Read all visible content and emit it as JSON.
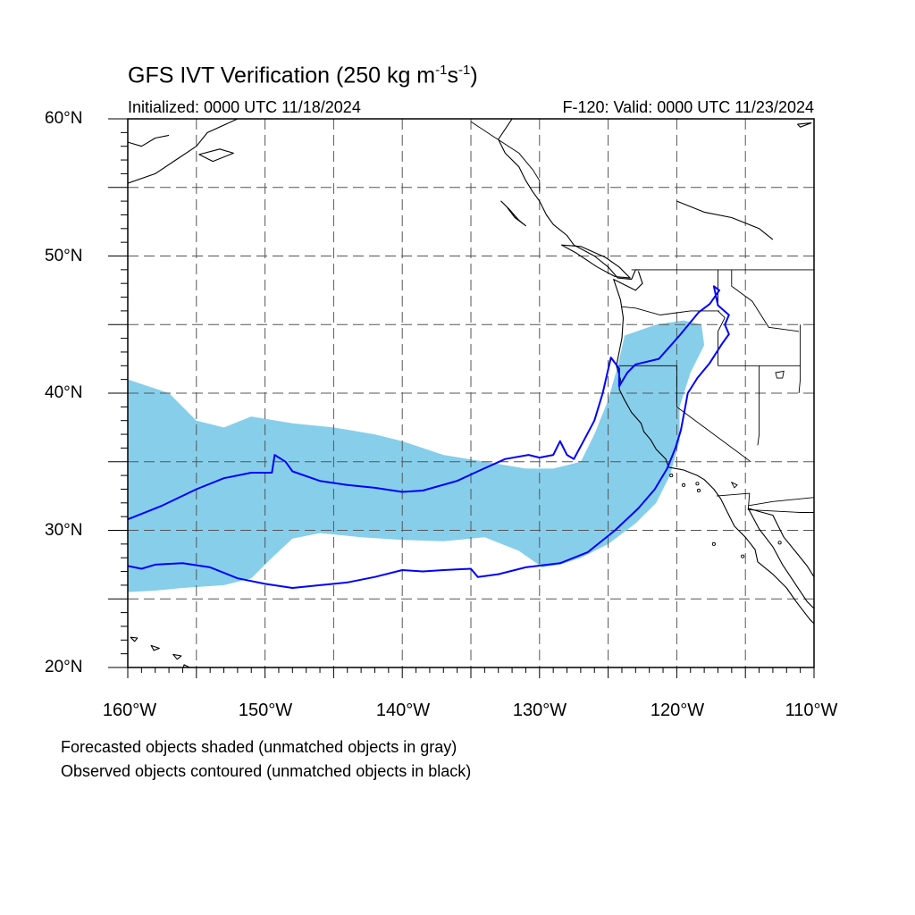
{
  "header": {
    "title_main": "GFS IVT Verification (250 kg m",
    "title_exp1": "-1",
    "title_mid": "s",
    "title_exp2": "-1",
    "title_end": ")",
    "initialized": "Initialized: 0000 UTC 11/18/2024",
    "valid": "F-120: Valid: 0000 UTC 11/23/2024"
  },
  "axes": {
    "lat_labels": [
      "60°N",
      "50°N",
      "40°N",
      "30°N",
      "20°N"
    ],
    "lon_labels": [
      "160°W",
      "150°W",
      "140°W",
      "130°W",
      "120°W",
      "110°W"
    ],
    "lat_range": [
      20,
      60
    ],
    "lon_range": [
      -160,
      -110
    ],
    "grid": "dashed, every 5 degrees"
  },
  "legend": {
    "line1": "Forecasted objects shaded (unmatched objects in gray)",
    "line2": "Observed objects contoured (unmatched objects in black)"
  },
  "colors": {
    "forecast_fill": "#87ceeb",
    "observed_contour": "#0000ff",
    "coastline": "#000000",
    "grid": "#555555"
  },
  "forecast_object": {
    "lonlat": [
      [
        -160,
        41
      ],
      [
        -157,
        40
      ],
      [
        -155,
        38
      ],
      [
        -153,
        37.5
      ],
      [
        -151,
        38.3
      ],
      [
        -148,
        37.8
      ],
      [
        -145,
        37.5
      ],
      [
        -142,
        37
      ],
      [
        -140,
        36.5
      ],
      [
        -137,
        35.5
      ],
      [
        -134,
        35
      ],
      [
        -131,
        34.5
      ],
      [
        -129,
        34.5
      ],
      [
        -127,
        35
      ],
      [
        -126,
        37
      ],
      [
        -125,
        39.5
      ],
      [
        -124.3,
        42
      ],
      [
        -123.8,
        44.2
      ],
      [
        -121.5,
        45
      ],
      [
        -119.5,
        45.3
      ],
      [
        -118.2,
        45
      ],
      [
        -118,
        43.5
      ],
      [
        -119,
        41.5
      ],
      [
        -119.8,
        39
      ],
      [
        -119.8,
        36.5
      ],
      [
        -120.5,
        34
      ],
      [
        -121.5,
        32
      ],
      [
        -123,
        30.5
      ],
      [
        -125,
        29
      ],
      [
        -127,
        28
      ],
      [
        -128.5,
        27.5
      ],
      [
        -129.8,
        27.3
      ],
      [
        -131.5,
        28.5
      ],
      [
        -134,
        29.5
      ],
      [
        -137,
        29.2
      ],
      [
        -140,
        29.3
      ],
      [
        -143,
        29.5
      ],
      [
        -146,
        29.8
      ],
      [
        -148,
        29.4
      ],
      [
        -149.5,
        28
      ],
      [
        -151,
        26.5
      ],
      [
        -153,
        26
      ],
      [
        -156,
        25.8
      ],
      [
        -158,
        25.6
      ],
      [
        -160,
        25.5
      ]
    ]
  },
  "observed_object": {
    "lonlat": [
      [
        -160,
        30.8
      ],
      [
        -157.5,
        31.8
      ],
      [
        -155,
        33
      ],
      [
        -153,
        33.8
      ],
      [
        -151,
        34.2
      ],
      [
        -149.5,
        34.2
      ],
      [
        -149.3,
        35.5
      ],
      [
        -148.5,
        35
      ],
      [
        -148,
        34.3
      ],
      [
        -146,
        33.6
      ],
      [
        -144,
        33.3
      ],
      [
        -142,
        33.1
      ],
      [
        -140,
        32.8
      ],
      [
        -138.5,
        32.9
      ],
      [
        -136,
        33.6
      ],
      [
        -134.5,
        34.3
      ],
      [
        -132.5,
        35.2
      ],
      [
        -130.8,
        35.5
      ],
      [
        -130,
        35.3
      ],
      [
        -129,
        35.5
      ],
      [
        -128.5,
        36.5
      ],
      [
        -128,
        35.5
      ],
      [
        -127.5,
        35.2
      ],
      [
        -126.8,
        36.5
      ],
      [
        -126,
        38
      ],
      [
        -125.4,
        40
      ],
      [
        -124.8,
        42.6
      ],
      [
        -124.2,
        41.8
      ],
      [
        -124.2,
        40.5
      ],
      [
        -123.6,
        41.5
      ],
      [
        -123,
        42.1
      ],
      [
        -121.3,
        42.5
      ],
      [
        -119.8,
        44.2
      ],
      [
        -118.4,
        45.9
      ],
      [
        -117.6,
        46.5
      ],
      [
        -116.9,
        47.5
      ],
      [
        -117.3,
        47.8
      ],
      [
        -117,
        46.4
      ],
      [
        -116.2,
        45.7
      ],
      [
        -116.5,
        45
      ],
      [
        -116.2,
        44.3
      ],
      [
        -116.7,
        43.6
      ],
      [
        -117.6,
        42.2
      ],
      [
        -118.5,
        41.1
      ],
      [
        -119.2,
        40
      ],
      [
        -119.4,
        38.9
      ],
      [
        -119.7,
        37.3
      ],
      [
        -120.1,
        36
      ],
      [
        -120.7,
        34.5
      ],
      [
        -121.6,
        33
      ],
      [
        -122.8,
        31.6
      ],
      [
        -124.5,
        30
      ],
      [
        -126.5,
        28.4
      ],
      [
        -128.5,
        27.6
      ],
      [
        -131,
        27.3
      ],
      [
        -133,
        26.8
      ],
      [
        -134.5,
        26.6
      ],
      [
        -135,
        27.2
      ],
      [
        -137,
        27.1
      ],
      [
        -138.5,
        27
      ],
      [
        -140,
        27.1
      ],
      [
        -142,
        26.6
      ],
      [
        -144,
        26.2
      ],
      [
        -146,
        26
      ],
      [
        -148,
        25.8
      ],
      [
        -150,
        26.1
      ],
      [
        -152,
        26.5
      ],
      [
        -154,
        27.3
      ],
      [
        -156,
        27.6
      ],
      [
        -158,
        27.5
      ],
      [
        -159,
        27.2
      ],
      [
        -160,
        27.4
      ]
    ]
  },
  "coastlines": [
    {
      "name": "alaska-panhandle",
      "lonlat": [
        [
          -132,
          60
        ],
        [
          -133,
          58.5
        ],
        [
          -132.5,
          57.5
        ],
        [
          -131.5,
          56.5
        ],
        [
          -131,
          55.5
        ],
        [
          -130.5,
          54.7
        ],
        [
          -130,
          54
        ],
        [
          -129.5,
          53
        ],
        [
          -129,
          52.3
        ],
        [
          -128,
          51.5
        ],
        [
          -127.5,
          50.8
        ],
        [
          -126,
          50
        ],
        [
          -125,
          49.2
        ],
        [
          -124.3,
          48.4
        ],
        [
          -123.3,
          48.3
        ],
        [
          -123,
          49
        ],
        [
          -122.7,
          49
        ]
      ]
    },
    {
      "name": "haida-gwaii",
      "lonlat": [
        [
          -132.8,
          54
        ],
        [
          -132.2,
          53.4
        ],
        [
          -131.5,
          52.6
        ],
        [
          -131,
          52.2
        ],
        [
          -131.8,
          52.8
        ],
        [
          -132.4,
          53.6
        ],
        [
          -132.8,
          54
        ]
      ]
    },
    {
      "name": "vancouver-island",
      "lonlat": [
        [
          -128.4,
          50.8
        ],
        [
          -127.3,
          50.2
        ],
        [
          -125.8,
          49.2
        ],
        [
          -124.5,
          48.5
        ],
        [
          -123.4,
          48.4
        ],
        [
          -124.2,
          49.2
        ],
        [
          -125.2,
          49.9
        ],
        [
          -127,
          50.7
        ],
        [
          -128.4,
          50.8
        ]
      ]
    },
    {
      "name": "west-coast-us-mexico",
      "lonlat": [
        [
          -122.8,
          48.9
        ],
        [
          -122.5,
          48
        ],
        [
          -123,
          47.5
        ],
        [
          -124.6,
          48.3
        ],
        [
          -124.1,
          46.8
        ],
        [
          -123.9,
          45.5
        ],
        [
          -124,
          44
        ],
        [
          -124.2,
          43
        ],
        [
          -124.4,
          42
        ],
        [
          -124.1,
          41
        ],
        [
          -124.2,
          40.3
        ],
        [
          -123.8,
          39.5
        ],
        [
          -123.3,
          38.6
        ],
        [
          -122.6,
          37.8
        ],
        [
          -122.4,
          37.2
        ],
        [
          -121.9,
          36.6
        ],
        [
          -121.5,
          35.9
        ],
        [
          -120.8,
          35.2
        ],
        [
          -120.6,
          34.6
        ],
        [
          -119.5,
          34.4
        ],
        [
          -118.5,
          34
        ],
        [
          -118,
          33.7
        ],
        [
          -117.3,
          33
        ],
        [
          -116.8,
          32.3
        ],
        [
          -116.3,
          31.3
        ],
        [
          -115.8,
          30.3
        ],
        [
          -115,
          29.5
        ],
        [
          -114.3,
          28.6
        ],
        [
          -114.1,
          27.7
        ],
        [
          -113,
          26.8
        ],
        [
          -112,
          25.8
        ],
        [
          -111.3,
          24.8
        ],
        [
          -110.3,
          23.5
        ],
        [
          -110,
          23.2
        ]
      ]
    },
    {
      "name": "gulf-of-california",
      "lonlat": [
        [
          -110,
          24.3
        ],
        [
          -110.5,
          24.8
        ],
        [
          -111.3,
          26
        ],
        [
          -112.3,
          27.5
        ],
        [
          -113,
          28.8
        ],
        [
          -114,
          30.1
        ],
        [
          -114.8,
          31.6
        ],
        [
          -114.1,
          31.4
        ],
        [
          -113,
          31.1
        ],
        [
          -112.2,
          29.5
        ],
        [
          -111.3,
          28.4
        ],
        [
          -110.5,
          27.4
        ],
        [
          -110,
          26.6
        ]
      ]
    },
    {
      "name": "hawaii-big-island",
      "lonlat": [
        [
          -155.9,
          20.2
        ],
        [
          -155.1,
          19.8
        ],
        [
          -155.6,
          19.3
        ],
        [
          -156,
          19.7
        ],
        [
          -155.9,
          20.2
        ]
      ]
    },
    {
      "name": "hawaii-maui",
      "lonlat": [
        [
          -156.7,
          20.95
        ],
        [
          -156.1,
          20.85
        ],
        [
          -156.4,
          20.6
        ],
        [
          -156.7,
          20.95
        ]
      ]
    },
    {
      "name": "hawaii-oahu",
      "lonlat": [
        [
          -158.3,
          21.6
        ],
        [
          -157.7,
          21.4
        ],
        [
          -158.1,
          21.25
        ],
        [
          -158.3,
          21.6
        ]
      ]
    },
    {
      "name": "hawaii-kauai",
      "lonlat": [
        [
          -159.8,
          22.2
        ],
        [
          -159.3,
          22.15
        ],
        [
          -159.5,
          21.9
        ],
        [
          -159.8,
          22.2
        ]
      ]
    },
    {
      "name": "alaska-gulf-coast",
      "lonlat": [
        [
          -160,
          55.3
        ],
        [
          -158,
          56
        ],
        [
          -156.5,
          57
        ],
        [
          -155,
          58
        ],
        [
          -154.2,
          59
        ],
        [
          -152,
          60
        ]
      ]
    },
    {
      "name": "kodiak",
      "lonlat": [
        [
          -154.8,
          57.4
        ],
        [
          -153.3,
          57.8
        ],
        [
          -152.3,
          57.5
        ],
        [
          -153.8,
          56.9
        ],
        [
          -154.8,
          57.4
        ]
      ]
    },
    {
      "name": "alaska-peninsula-islands",
      "lonlat": [
        [
          -160,
          58.3
        ],
        [
          -159,
          58
        ],
        [
          -158,
          58.6
        ],
        [
          -157,
          58.8
        ]
      ]
    },
    {
      "name": "canada-interior-line",
      "lonlat": [
        [
          -120,
          54
        ],
        [
          -118,
          53.2
        ],
        [
          -116,
          52.8
        ],
        [
          -114,
          52
        ],
        [
          -113,
          51.2
        ]
      ]
    },
    {
      "name": "hudson-fragment",
      "lonlat": [
        [
          -110.2,
          59.7
        ],
        [
          -111,
          59.4
        ],
        [
          -111.2,
          59.6
        ],
        [
          -110.2,
          59.7
        ]
      ]
    }
  ],
  "borders": [
    {
      "name": "us-canada",
      "lonlat": [
        [
          -123.3,
          49
        ],
        [
          -110,
          49
        ]
      ]
    },
    {
      "name": "alaska-canada",
      "lonlat": [
        [
          -135,
          59.8
        ],
        [
          -133.5,
          58.8
        ],
        [
          -131.5,
          57.5
        ],
        [
          -130.5,
          56.3
        ],
        [
          -130,
          55.5
        ],
        [
          -130,
          54.7
        ]
      ]
    },
    {
      "name": "us-mexico",
      "lonlat": [
        [
          -117.1,
          32.5
        ],
        [
          -114.7,
          32.7
        ],
        [
          -114.8,
          31.5
        ],
        [
          -111,
          31.3
        ],
        [
          -110,
          31.3
        ]
      ]
    },
    {
      "name": "baja-sonora",
      "lonlat": [
        [
          -114.8,
          31.8
        ],
        [
          -113,
          32.1
        ],
        [
          -110,
          32.4
        ]
      ]
    },
    {
      "name": "ca-or",
      "lonlat": [
        [
          -124.2,
          42
        ],
        [
          -120,
          42
        ]
      ]
    },
    {
      "name": "ca-nv",
      "lonlat": [
        [
          -120,
          42
        ],
        [
          -120,
          39
        ],
        [
          -114.6,
          35
        ]
      ]
    },
    {
      "name": "or-wa",
      "lonlat": [
        [
          -124,
          46.3
        ],
        [
          -123,
          46.2
        ],
        [
          -121.2,
          45.7
        ],
        [
          -119,
          46
        ],
        [
          -116.9,
          46
        ]
      ]
    },
    {
      "name": "wa-id",
      "lonlat": [
        [
          -117,
          49
        ],
        [
          -117,
          46.4
        ]
      ]
    },
    {
      "name": "or-id",
      "lonlat": [
        [
          -117,
          46
        ],
        [
          -116.5,
          45.5
        ],
        [
          -117,
          44.5
        ],
        [
          -117,
          42
        ]
      ]
    },
    {
      "name": "nv-ut-az",
      "lonlat": [
        [
          -114,
          42
        ],
        [
          -114,
          37
        ],
        [
          -114.1,
          36.2
        ]
      ]
    },
    {
      "name": "id-mt",
      "lonlat": [
        [
          -116,
          49
        ],
        [
          -116,
          47.8
        ],
        [
          -114.5,
          46.7
        ],
        [
          -113.3,
          44.8
        ],
        [
          -111.1,
          44.5
        ]
      ]
    },
    {
      "name": "ut-wy",
      "lonlat": [
        [
          -111,
          45
        ],
        [
          -111,
          41
        ],
        [
          -111.1,
          40
        ]
      ]
    },
    {
      "name": "id-nv-ut",
      "lonlat": [
        [
          -117,
          42
        ],
        [
          -111,
          42
        ]
      ]
    }
  ],
  "lakes": [
    {
      "name": "great-salt-lake",
      "lonlat": [
        [
          -112.8,
          41.5
        ],
        [
          -112.2,
          41.6
        ],
        [
          -112.3,
          41.1
        ],
        [
          -112.7,
          41.1
        ],
        [
          -112.8,
          41.5
        ]
      ]
    },
    {
      "name": "salton-sea",
      "lonlat": [
        [
          -116,
          33.5
        ],
        [
          -115.6,
          33.3
        ],
        [
          -115.8,
          33.1
        ],
        [
          -116,
          33.5
        ]
      ]
    }
  ],
  "islands_small": [
    [
      -118.5,
      33.4
    ],
    [
      -118.4,
      32.9
    ],
    [
      -119.5,
      33.3
    ],
    [
      -120.4,
      34
    ],
    [
      -117.3,
      29
    ],
    [
      -115.2,
      28.1
    ],
    [
      -112.5,
      29.1
    ]
  ]
}
